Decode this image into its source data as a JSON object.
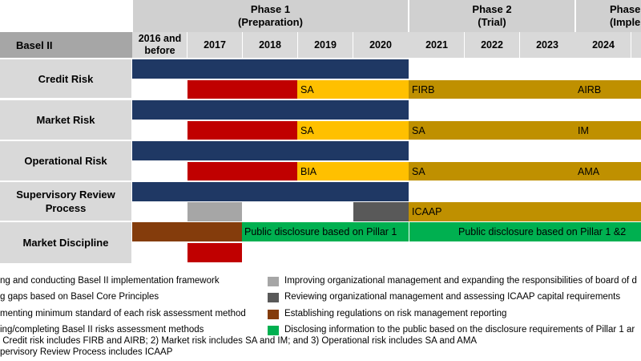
{
  "colors": {
    "navy": "#1f3864",
    "red": "#c00000",
    "yellow": "#ffc000",
    "gold": "#bf9000",
    "light_gray": "#a6a6a6",
    "dark_gray": "#595959",
    "brown": "#843c0c",
    "green": "#00b050"
  },
  "header": {
    "corner_label": "Basel II",
    "phase1": {
      "line1": "Phase 1",
      "line2": "(Preparation)"
    },
    "phase2": {
      "line1": "Phase 2",
      "line2": "(Trial)"
    },
    "phase3": {
      "line1": "Phase",
      "line2": "(Implemen"
    },
    "years": [
      "2016 and before",
      "2017",
      "2018",
      "2019",
      "2020",
      "2021",
      "2022",
      "2023",
      "2024"
    ]
  },
  "rows": {
    "credit_risk": "Credit Risk",
    "market_risk": "Market Risk",
    "operational_risk": "Operational Risk",
    "srp": "Supervisory Review Process",
    "market_discipline": "Market Discipline"
  },
  "bars": {
    "credit_sa": "SA",
    "credit_firb": "FIRB",
    "credit_airb": "AIRB",
    "market_sa1": "SA",
    "market_sa2": "SA",
    "market_im": "IM",
    "op_bia": "BIA",
    "op_sa": "SA",
    "op_ama": "AMA",
    "srp_icaap": "ICAAP",
    "md_pillar1": "Public disclosure based on Pillar 1",
    "md_pillar12": "Public disclosure based on Pillar 1 &2"
  },
  "legend": {
    "left": [
      "ng and conducting Basel II implementation framework",
      "g gaps based on Basel Core Principles",
      "menting minimum standard of each risk assessment method",
      "ing/completing Basel II risks assessment methods"
    ],
    "right": [
      "Improving organizational management and expanding the responsibilities of board of d",
      "Reviewing organizational management and assessing ICAAP capital requirements",
      "Establishing regulations on risk management reporting",
      "Disclosing information to the public based on the disclosure requirements of Pillar 1 ar"
    ],
    "right_icons": [
      "light-gray-square-icon",
      "dark-gray-square-icon",
      "brown-square-icon",
      "green-square-icon"
    ]
  },
  "notes": [
    " Credit risk includes FIRB and AIRB; 2) Market risk includes SA and IM; and 3) Operational risk includes SA and AMA",
    "pervisory Review Process includes ICAAP"
  ]
}
